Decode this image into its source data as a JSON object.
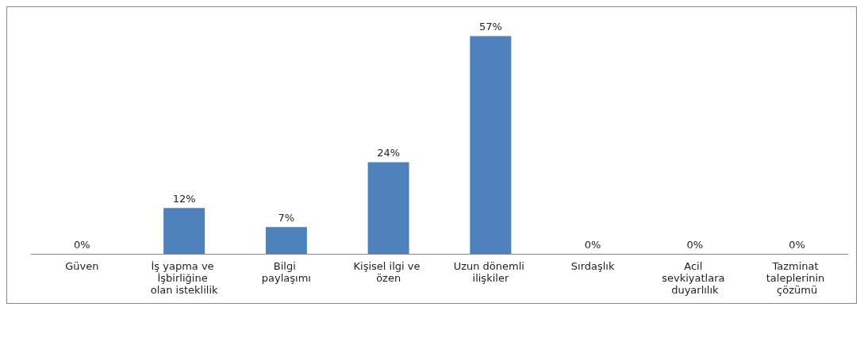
{
  "chart_data": {
    "type": "bar",
    "categories": [
      "Güven",
      "İş yapma ve İşbirliğine olan isteklilik",
      "Bilgi paylaşımı",
      "Kişisel ilgi ve özen",
      "Uzun dönemli ilişkiler",
      "Sırdaşlık",
      "Acil sevkiyatlara duyarlılık",
      "Tazminat taleplerinin çözümü"
    ],
    "values": [
      0,
      12,
      7,
      24,
      57,
      0,
      0,
      0
    ],
    "value_labels": [
      "0%",
      "12%",
      "7%",
      "24%",
      "57%",
      "0%",
      "0%",
      "0%"
    ],
    "color": "#4f81bd",
    "grid": false
  }
}
